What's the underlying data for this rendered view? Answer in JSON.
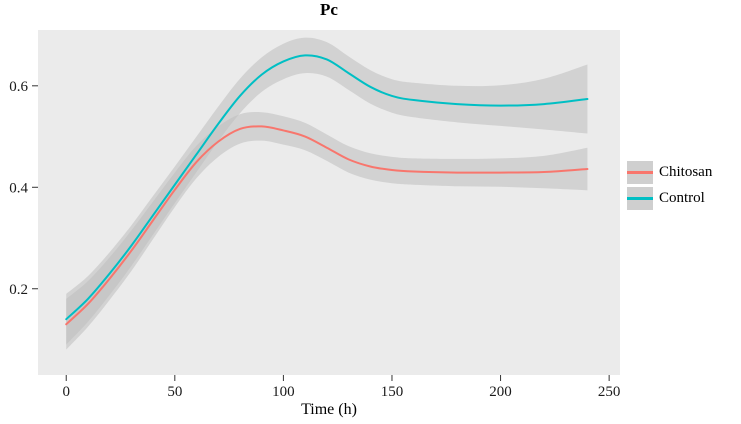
{
  "chart_data": {
    "type": "line",
    "title": "Pc",
    "xlabel": "Time (h)",
    "ylabel": "",
    "x": [
      0,
      10,
      20,
      30,
      40,
      50,
      60,
      70,
      80,
      90,
      100,
      110,
      120,
      130,
      140,
      150,
      160,
      180,
      200,
      220,
      240
    ],
    "series": [
      {
        "name": "Chitosan",
        "color": "#f8766d",
        "values": [
          0.13,
          0.17,
          0.22,
          0.275,
          0.335,
          0.395,
          0.45,
          0.49,
          0.515,
          0.52,
          0.512,
          0.5,
          0.478,
          0.455,
          0.441,
          0.434,
          0.431,
          0.429,
          0.429,
          0.43,
          0.436
        ],
        "ci": [
          0.05,
          0.045,
          0.042,
          0.04,
          0.037,
          0.034,
          0.032,
          0.03,
          0.029,
          0.028,
          0.028,
          0.027,
          0.026,
          0.026,
          0.026,
          0.026,
          0.026,
          0.027,
          0.028,
          0.032,
          0.042
        ]
      },
      {
        "name": "Control",
        "color": "#00bfc4",
        "values": [
          0.14,
          0.18,
          0.23,
          0.285,
          0.345,
          0.405,
          0.465,
          0.525,
          0.58,
          0.622,
          0.648,
          0.66,
          0.652,
          0.625,
          0.598,
          0.58,
          0.572,
          0.564,
          0.561,
          0.564,
          0.574
        ],
        "ci": [
          0.05,
          0.045,
          0.042,
          0.04,
          0.038,
          0.036,
          0.035,
          0.034,
          0.034,
          0.034,
          0.035,
          0.035,
          0.034,
          0.033,
          0.033,
          0.033,
          0.034,
          0.036,
          0.04,
          0.05,
          0.068
        ]
      }
    ],
    "xlim": [
      -13,
      255
    ],
    "ylim": [
      0.03,
      0.71
    ],
    "xticks": [
      0,
      50,
      100,
      150,
      200,
      250
    ],
    "yticks": [
      0.2,
      0.4,
      0.6
    ],
    "ribbon_color": "#bdbdbd",
    "ribbon_opacity": 0.55,
    "panel_bg": "#ebebeb",
    "grid": false,
    "legend": {
      "position": "right",
      "entries": [
        "Chitosan",
        "Control"
      ]
    }
  }
}
